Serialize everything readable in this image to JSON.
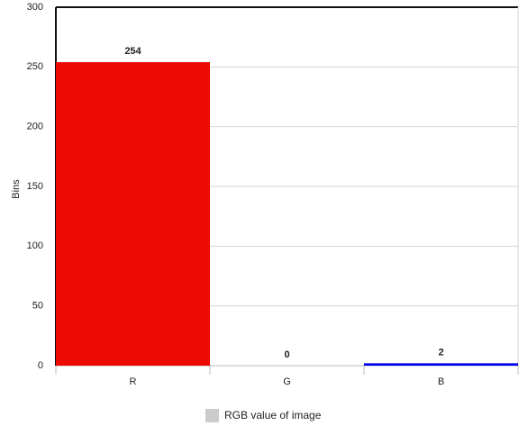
{
  "chart_data": {
    "type": "bar",
    "y_label": "Bins",
    "categories": [
      "R",
      "G",
      "B"
    ],
    "series": [
      {
        "name": "RGB value of image",
        "color": "#cccccc",
        "values": [
          254,
          0,
          2
        ]
      }
    ],
    "bar_colors": [
      "#ee0a02",
      "#00a000",
      "#0000ee"
    ],
    "ylim": [
      0,
      300
    ],
    "yticks": [
      0,
      50,
      100,
      150,
      200,
      250,
      300
    ],
    "grid": true,
    "legend": "bottom"
  }
}
